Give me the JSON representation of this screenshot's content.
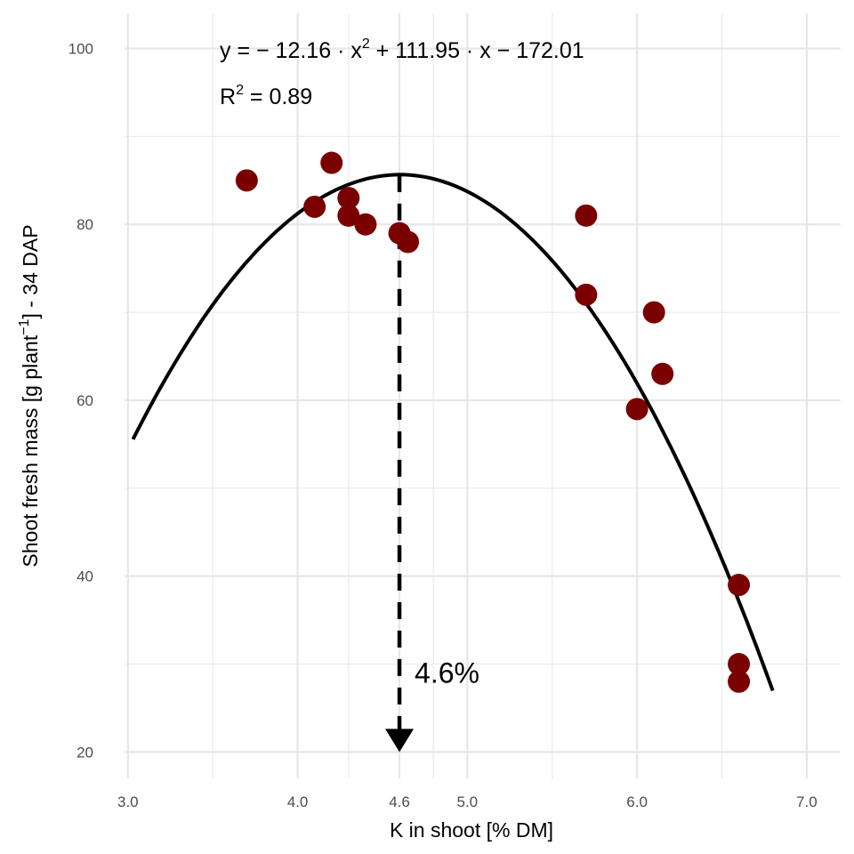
{
  "chart_data": {
    "type": "scatter",
    "xlabel": "K in shoot [% DM]",
    "ylabel_main": "Shoot fresh mass [g plant",
    "ylabel_sup": "−1",
    "ylabel_tail": "] - 34 DAP",
    "xlim": [
      2.98,
      7.2
    ],
    "ylim": [
      17,
      104
    ],
    "x_ticks": [
      3.0,
      4.0,
      4.6,
      5.0,
      6.0,
      7.0
    ],
    "x_tick_labels": [
      "3.0",
      "4.0",
      "4.6",
      "5.0",
      "6.0",
      "7.0"
    ],
    "y_ticks": [
      20,
      40,
      60,
      80,
      100
    ],
    "y_tick_labels": [
      "20",
      "40",
      "60",
      "80",
      "100"
    ],
    "x_minor_grid": [
      3.5,
      4.3,
      4.8,
      5.5,
      6.5
    ],
    "y_minor_grid": [
      30,
      50,
      70,
      90
    ],
    "grid": true,
    "point_color": "#7a0000",
    "points": [
      {
        "x": 3.7,
        "y": 85
      },
      {
        "x": 4.1,
        "y": 82
      },
      {
        "x": 4.2,
        "y": 87
      },
      {
        "x": 4.3,
        "y": 83
      },
      {
        "x": 4.3,
        "y": 81
      },
      {
        "x": 4.4,
        "y": 80
      },
      {
        "x": 4.6,
        "y": 79
      },
      {
        "x": 4.65,
        "y": 78
      },
      {
        "x": 5.7,
        "y": 81
      },
      {
        "x": 5.7,
        "y": 72
      },
      {
        "x": 6.1,
        "y": 70
      },
      {
        "x": 6.15,
        "y": 63
      },
      {
        "x": 6.0,
        "y": 59
      },
      {
        "x": 6.6,
        "y": 39
      },
      {
        "x": 6.6,
        "y": 30
      },
      {
        "x": 6.6,
        "y": 28
      }
    ],
    "fit": {
      "type": "quadratic",
      "coefficients": {
        "a": -12.16,
        "b": 111.95,
        "c": -172.01
      },
      "x_range": [
        3.03,
        6.8
      ],
      "color": "#000000"
    },
    "optimum": {
      "x": 4.6,
      "y_top": 85.6,
      "y_bottom": 20,
      "label": "4.6%"
    },
    "annotation": {
      "equation_parts": [
        "y = − 12.16 · x",
        "2",
        " + 111.95 · x − 172.01"
      ],
      "r2_parts": [
        "R",
        "2",
        " = 0.89"
      ]
    }
  }
}
